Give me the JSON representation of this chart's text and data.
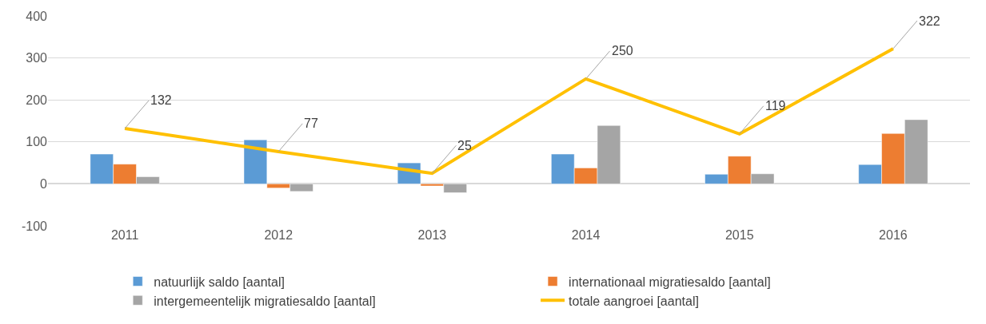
{
  "chart_data": {
    "type": "bar",
    "categories": [
      "2011",
      "2012",
      "2013",
      "2014",
      "2015",
      "2016"
    ],
    "series": [
      {
        "name": "natuurlijk saldo [aantal]",
        "color": "#5b9bd5",
        "values": [
          71,
          105,
          50,
          71,
          23,
          46
        ]
      },
      {
        "name": "internationaal migratiesaldo [aantal]",
        "color": "#ed7d31",
        "values": [
          47,
          -10,
          -5,
          38,
          66,
          120
        ]
      },
      {
        "name": "intergemeentelijk migratiesaldo [aantal]",
        "color": "#a5a5a5",
        "values": [
          17,
          -18,
          -21,
          139,
          24,
          153
        ]
      },
      {
        "name": "totale aangroei [aantal]",
        "type": "line",
        "color": "#ffc000",
        "values": [
          132,
          77,
          25,
          250,
          119,
          322
        ],
        "value_labels": [
          "132",
          "77",
          "25",
          "250",
          "119",
          "322"
        ]
      }
    ],
    "ylim": [
      -100,
      400
    ],
    "yticks": [
      -100,
      0,
      100,
      200,
      300,
      400
    ],
    "grid": "y",
    "legend": "bottom",
    "marker": "none",
    "line_style": "solid"
  }
}
